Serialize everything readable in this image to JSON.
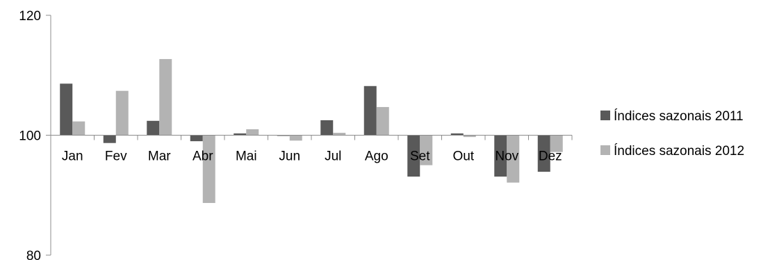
{
  "chart_data": {
    "type": "bar",
    "categories": [
      "Jan",
      "Fev",
      "Mar",
      "Abr",
      "Mai",
      "Jun",
      "Jul",
      "Ago",
      "Set",
      "Out",
      "Nov",
      "Dez"
    ],
    "series": [
      {
        "name": "Índices sazonais 2011",
        "color": "#595959",
        "values": [
          108.6,
          98.7,
          102.4,
          99.0,
          100.3,
          100.0,
          102.5,
          108.2,
          93.1,
          100.3,
          93.1,
          93.9
        ]
      },
      {
        "name": "Índices sazonais 2012",
        "color": "#b3b3b3",
        "values": [
          102.3,
          107.4,
          112.7,
          88.7,
          101.0,
          99.1,
          100.4,
          104.7,
          95.0,
          99.7,
          92.1,
          97.2
        ]
      }
    ],
    "yticks": [
      80,
      100,
      120
    ],
    "ylim": [
      80,
      120
    ],
    "baseline": 100,
    "legend_position": "right",
    "grid": false,
    "title": "",
    "xlabel": "",
    "ylabel": ""
  }
}
